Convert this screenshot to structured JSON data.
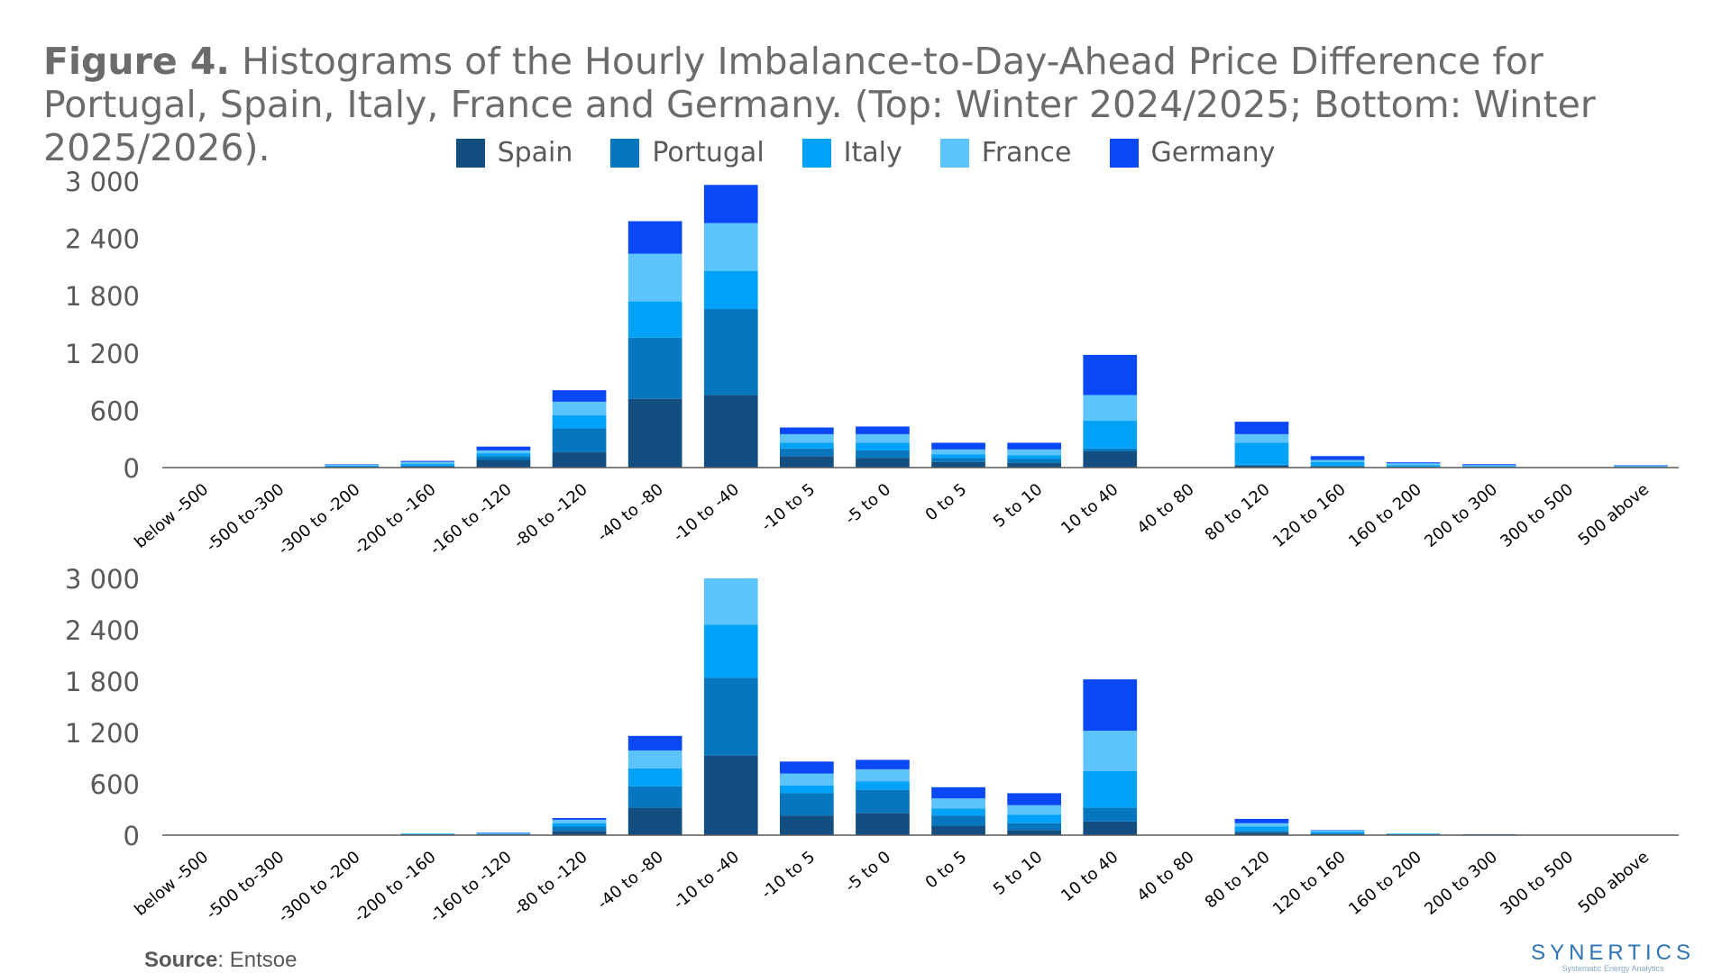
{
  "title": {
    "label": "Figure 4.",
    "text": "Histograms of the Hourly Imbalance-to-Day-Ahead Price Difference for Portugal, Spain, Italy, France and Germany. (Top: Winter 2024/2025; Bottom: Winter 2025/2026)."
  },
  "legend": [
    {
      "name": "Spain",
      "color": "#124e7f"
    },
    {
      "name": "Portugal",
      "color": "#0676bf"
    },
    {
      "name": "Italy",
      "color": "#00a2f7"
    },
    {
      "name": "France",
      "color": "#5cc3fd"
    },
    {
      "name": "Germany",
      "color": "#0a47f7"
    }
  ],
  "chart_data": [
    {
      "type": "bar",
      "stacked": true,
      "title": "Winter 2024/2025",
      "categories": [
        "below -500",
        "-500 to-300",
        "-300 to -200",
        "-200 to -160",
        "-160 to -120",
        "-80 to -120",
        "-40 to -80",
        "-10 to -40",
        "-10 to 5",
        "-5 to 0",
        "0 to 5",
        "5 to 10",
        "10 to 40",
        "40 to 80",
        "80 to 120",
        "120 to 160",
        "160 to 200",
        "200 to 300",
        "300 to 500",
        "500 above"
      ],
      "series": [
        {
          "name": "Spain",
          "values": [
            0,
            0,
            5,
            10,
            80,
            160,
            720,
            760,
            120,
            100,
            60,
            50,
            170,
            0,
            20,
            10,
            5,
            5,
            0,
            5
          ]
        },
        {
          "name": "Portugal",
          "values": [
            0,
            0,
            5,
            10,
            40,
            250,
            640,
            900,
            80,
            80,
            40,
            40,
            30,
            0,
            10,
            10,
            5,
            5,
            0,
            5
          ]
        },
        {
          "name": "Italy",
          "values": [
            0,
            0,
            10,
            20,
            30,
            140,
            380,
            400,
            60,
            80,
            40,
            40,
            290,
            0,
            230,
            40,
            15,
            5,
            0,
            5
          ]
        },
        {
          "name": "France",
          "values": [
            0,
            0,
            10,
            20,
            30,
            140,
            500,
            500,
            90,
            90,
            50,
            60,
            270,
            0,
            90,
            20,
            20,
            10,
            0,
            5
          ]
        },
        {
          "name": "Germany",
          "values": [
            0,
            0,
            5,
            10,
            40,
            120,
            340,
            400,
            70,
            80,
            70,
            70,
            420,
            0,
            130,
            40,
            10,
            10,
            0,
            5
          ]
        }
      ],
      "yticks": [
        "0",
        "600",
        "1 200",
        "1 800",
        "2 400",
        "3 000"
      ],
      "ylim": [
        0,
        3000
      ],
      "xlabel": "",
      "ylabel": ""
    },
    {
      "type": "bar",
      "stacked": true,
      "title": "Winter 2025/2026",
      "categories": [
        "below -500",
        "-500 to-300",
        "-300 to -200",
        "-200 to -160",
        "-160 to -120",
        "-80 to -120",
        "-40 to -80",
        "-10 to -40",
        "-10 to 5",
        "-5 to 0",
        "0 to 5",
        "5 to 10",
        "10 to 40",
        "40 to 80",
        "80 to 120",
        "120 to 160",
        "160 to 200",
        "200 to 300",
        "300 to 500",
        "500 above"
      ],
      "series": [
        {
          "name": "Spain",
          "values": [
            0,
            0,
            0,
            5,
            5,
            50,
            320,
            930,
            230,
            260,
            110,
            60,
            160,
            0,
            30,
            10,
            5,
            5,
            0,
            0
          ]
        },
        {
          "name": "Portugal",
          "values": [
            0,
            0,
            0,
            5,
            5,
            50,
            250,
            910,
            260,
            270,
            120,
            80,
            160,
            0,
            20,
            10,
            5,
            5,
            0,
            0
          ]
        },
        {
          "name": "Italy",
          "values": [
            0,
            0,
            0,
            5,
            5,
            40,
            210,
            620,
            90,
            100,
            80,
            100,
            430,
            0,
            50,
            20,
            5,
            0,
            0,
            0
          ]
        },
        {
          "name": "France",
          "values": [
            0,
            0,
            0,
            5,
            10,
            40,
            210,
            540,
            140,
            140,
            120,
            110,
            470,
            0,
            40,
            15,
            5,
            0,
            0,
            0
          ]
        },
        {
          "name": "Germany",
          "values": [
            0,
            0,
            0,
            0,
            5,
            20,
            170,
            0,
            140,
            110,
            130,
            140,
            600,
            0,
            50,
            5,
            0,
            0,
            0,
            0
          ]
        }
      ],
      "yticks": [
        "0",
        "600",
        "1 200",
        "1 800",
        "2 400",
        "3 000"
      ],
      "ylim": [
        0,
        3000
      ],
      "xlabel": "",
      "ylabel": ""
    }
  ],
  "source": {
    "label": "Source",
    "text": ": Entsoe"
  },
  "logo": {
    "main": "SYNERTICS",
    "sub": "Systematic Energy Analytics"
  }
}
